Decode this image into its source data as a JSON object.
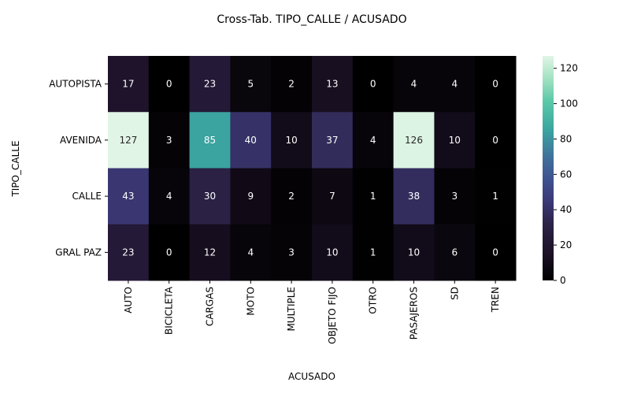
{
  "chart_data": {
    "type": "heatmap",
    "title": "Cross-Tab. TIPO_CALLE / ACUSADO",
    "xlabel": "ACUSADO",
    "ylabel": "TIPO_CALLE",
    "x_categories": [
      "AUTO",
      "BICICLETA",
      "CARGAS",
      "MOTO",
      "MULTIPLE",
      "OBJETO FIJO",
      "OTRO",
      "PASAJEROS",
      "SD",
      "TREN"
    ],
    "y_categories": [
      "AUTOPISTA",
      "AVENIDA",
      "CALLE",
      "GRAL PAZ"
    ],
    "values": [
      [
        17,
        0,
        23,
        5,
        2,
        13,
        0,
        4,
        4,
        0
      ],
      [
        127,
        3,
        85,
        40,
        10,
        37,
        4,
        126,
        10,
        0
      ],
      [
        43,
        4,
        30,
        9,
        2,
        7,
        1,
        38,
        3,
        1
      ],
      [
        23,
        0,
        12,
        4,
        3,
        10,
        1,
        10,
        6,
        0
      ]
    ],
    "colorbar": {
      "range": [
        0,
        127
      ],
      "ticks": [
        0,
        20,
        40,
        60,
        80,
        100,
        120
      ]
    },
    "colormap_stops": [
      [
        0.0,
        "#000000"
      ],
      [
        0.12,
        "#1c1126"
      ],
      [
        0.25,
        "#2c2347"
      ],
      [
        0.35,
        "#3b3876"
      ],
      [
        0.45,
        "#3f5290"
      ],
      [
        0.55,
        "#3f719b"
      ],
      [
        0.68,
        "#3ba8a0"
      ],
      [
        0.8,
        "#5cc9a9"
      ],
      [
        0.9,
        "#a2e2c2"
      ],
      [
        1.0,
        "#e1f5e6"
      ]
    ]
  }
}
